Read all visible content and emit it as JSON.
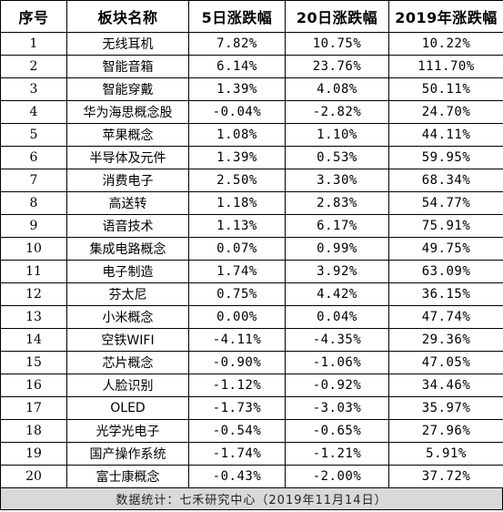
{
  "table": {
    "headers": {
      "index": "序号",
      "sector": "板块名称",
      "change_5d": "5日涨跌幅",
      "change_20d": "20日涨跌幅",
      "change_2019": "2019年涨跌幅"
    },
    "rows": [
      {
        "index": "1",
        "sector": "无线耳机",
        "change_5d": "7.82%",
        "change_20d": "10.75%",
        "change_2019": "10.22%"
      },
      {
        "index": "2",
        "sector": "智能音箱",
        "change_5d": "6.14%",
        "change_20d": "23.76%",
        "change_2019": "111.70%"
      },
      {
        "index": "3",
        "sector": "智能穿戴",
        "change_5d": "1.39%",
        "change_20d": "4.08%",
        "change_2019": "50.11%"
      },
      {
        "index": "4",
        "sector": "华为海思概念股",
        "change_5d": "-0.04%",
        "change_20d": "-2.82%",
        "change_2019": "24.70%"
      },
      {
        "index": "5",
        "sector": "苹果概念",
        "change_5d": "1.08%",
        "change_20d": "1.10%",
        "change_2019": "44.11%"
      },
      {
        "index": "6",
        "sector": "半导体及元件",
        "change_5d": "1.39%",
        "change_20d": "0.53%",
        "change_2019": "59.95%"
      },
      {
        "index": "7",
        "sector": "消费电子",
        "change_5d": "2.50%",
        "change_20d": "3.30%",
        "change_2019": "68.34%"
      },
      {
        "index": "8",
        "sector": "高送转",
        "change_5d": "1.18%",
        "change_20d": "2.83%",
        "change_2019": "54.77%"
      },
      {
        "index": "9",
        "sector": "语音技术",
        "change_5d": "1.13%",
        "change_20d": "6.17%",
        "change_2019": "75.91%"
      },
      {
        "index": "10",
        "sector": "集成电路概念",
        "change_5d": "0.07%",
        "change_20d": "0.99%",
        "change_2019": "49.75%"
      },
      {
        "index": "11",
        "sector": "电子制造",
        "change_5d": "1.74%",
        "change_20d": "3.92%",
        "change_2019": "63.09%"
      },
      {
        "index": "12",
        "sector": "芬太尼",
        "change_5d": "0.75%",
        "change_20d": "4.42%",
        "change_2019": "36.15%"
      },
      {
        "index": "13",
        "sector": "小米概念",
        "change_5d": "0.00%",
        "change_20d": "0.04%",
        "change_2019": "47.74%"
      },
      {
        "index": "14",
        "sector": "空铁WIFI",
        "change_5d": "-4.11%",
        "change_20d": "-4.35%",
        "change_2019": "29.36%"
      },
      {
        "index": "15",
        "sector": "芯片概念",
        "change_5d": "-0.90%",
        "change_20d": "-1.06%",
        "change_2019": "47.05%"
      },
      {
        "index": "16",
        "sector": "人脸识别",
        "change_5d": "-1.12%",
        "change_20d": "-0.92%",
        "change_2019": "34.46%"
      },
      {
        "index": "17",
        "sector": "OLED",
        "change_5d": "-1.73%",
        "change_20d": "-3.03%",
        "change_2019": "35.97%"
      },
      {
        "index": "18",
        "sector": "光学光电子",
        "change_5d": "-0.54%",
        "change_20d": "-0.65%",
        "change_2019": "27.96%"
      },
      {
        "index": "19",
        "sector": "国产操作系统",
        "change_5d": "-1.74%",
        "change_20d": "-1.21%",
        "change_2019": "5.91%"
      },
      {
        "index": "20",
        "sector": "富士康概念",
        "change_5d": "-0.43%",
        "change_20d": "-2.00%",
        "change_2019": "37.72%"
      }
    ]
  },
  "footer": {
    "source_note": "数据统计：七禾研究中心（2019年11月14日）"
  },
  "colors": {
    "border": "#000000",
    "footer_background": "#d9d9d9",
    "text": "#000000"
  }
}
